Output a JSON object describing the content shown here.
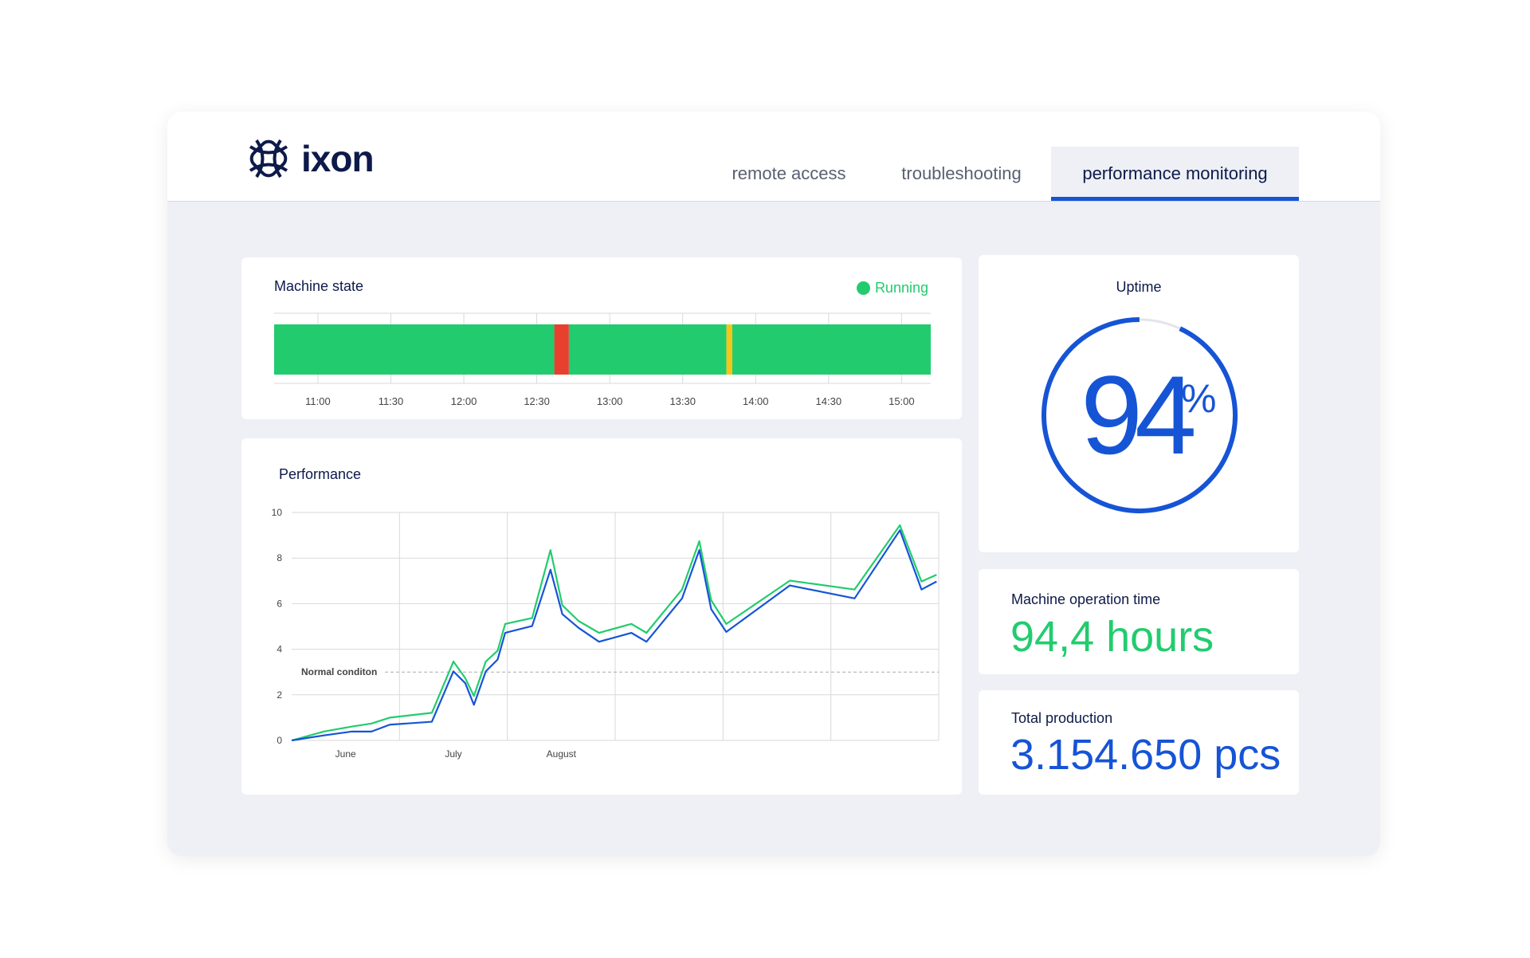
{
  "header": {
    "logo": "ixon",
    "tabs": [
      "remote access",
      "troubleshooting",
      "performance monitoring"
    ],
    "active_tab": 2
  },
  "machine_state": {
    "title": "Machine state",
    "status": "Running",
    "status_color": "#22cc6e",
    "timeline": {
      "xlim": [
        10.7,
        15.2
      ],
      "xticks": [
        {
          "value": 11,
          "label": "11:00"
        },
        {
          "value": 11.5,
          "label": "11:30"
        },
        {
          "value": 12,
          "label": "12:00"
        },
        {
          "value": 12.5,
          "label": "12:30"
        },
        {
          "value": 13,
          "label": "13:00"
        },
        {
          "value": 13.5,
          "label": "13:30"
        },
        {
          "value": 14,
          "label": "14:00"
        },
        {
          "value": 14.5,
          "label": "14:30"
        },
        {
          "value": 15,
          "label": "15:00"
        }
      ],
      "segments": [
        {
          "start": 10.7,
          "end": 12.62,
          "color": "#22cc6e"
        },
        {
          "start": 12.62,
          "end": 12.72,
          "color": "#e8402e"
        },
        {
          "start": 12.72,
          "end": 13.8,
          "color": "#22cc6e"
        },
        {
          "start": 13.8,
          "end": 13.84,
          "color": "#f5c518"
        },
        {
          "start": 13.84,
          "end": 15.2,
          "color": "#22cc6e"
        }
      ]
    }
  },
  "chart_data": {
    "type": "line",
    "title": "Performance",
    "x": [
      0,
      0.3,
      0.56,
      0.74,
      0.91,
      1.3,
      1.5,
      1.61,
      1.69,
      1.8,
      1.91,
      1.98,
      2.23,
      2.4,
      2.51,
      2.66,
      2.85,
      3.15,
      3.29,
      3.62,
      3.78,
      3.89,
      4.03,
      4.62,
      5.22,
      5.64,
      5.84,
      5.98
    ],
    "series": [
      {
        "color": "#22cc6e",
        "values": [
          0,
          0.39,
          0.61,
          0.74,
          1.0,
          1.21,
          3.46,
          2.73,
          1.95,
          3.46,
          3.94,
          5.11,
          5.37,
          8.35,
          5.93,
          5.24,
          4.72,
          5.11,
          4.72,
          6.62,
          8.74,
          6.15,
          5.11,
          7.01,
          6.62,
          9.44,
          6.97,
          7.27
        ]
      },
      {
        "color": "#1654d6",
        "values": [
          0,
          0.22,
          0.39,
          0.39,
          0.69,
          0.82,
          3.03,
          2.51,
          1.56,
          3.03,
          3.55,
          4.72,
          5.02,
          7.49,
          5.54,
          4.94,
          4.33,
          4.72,
          4.33,
          6.23,
          8.35,
          5.76,
          4.76,
          6.8,
          6.23,
          9.22,
          6.62,
          6.97
        ]
      }
    ],
    "xlim": [
      0,
      6
    ],
    "xticks": [
      {
        "value": 0.5,
        "label": "June"
      },
      {
        "value": 1.5,
        "label": "July"
      },
      {
        "value": 2.5,
        "label": "August"
      }
    ],
    "x_gridlines": [
      1,
      2,
      3,
      4,
      5,
      6
    ],
    "ylim": [
      0,
      10
    ],
    "yticks": [
      0,
      2,
      4,
      6,
      8,
      10
    ],
    "grid": true,
    "reference_line": {
      "value": 3,
      "label": "Normal conditon"
    }
  },
  "uptime": {
    "title": "Uptime",
    "value": 94,
    "unit": "%",
    "range": [
      0,
      100
    ],
    "color": "#1654d6"
  },
  "operation_time": {
    "title": "Machine operation time",
    "value": "94,4 hours"
  },
  "total_production": {
    "title": "Total production",
    "value": "3.154.650 pcs"
  }
}
